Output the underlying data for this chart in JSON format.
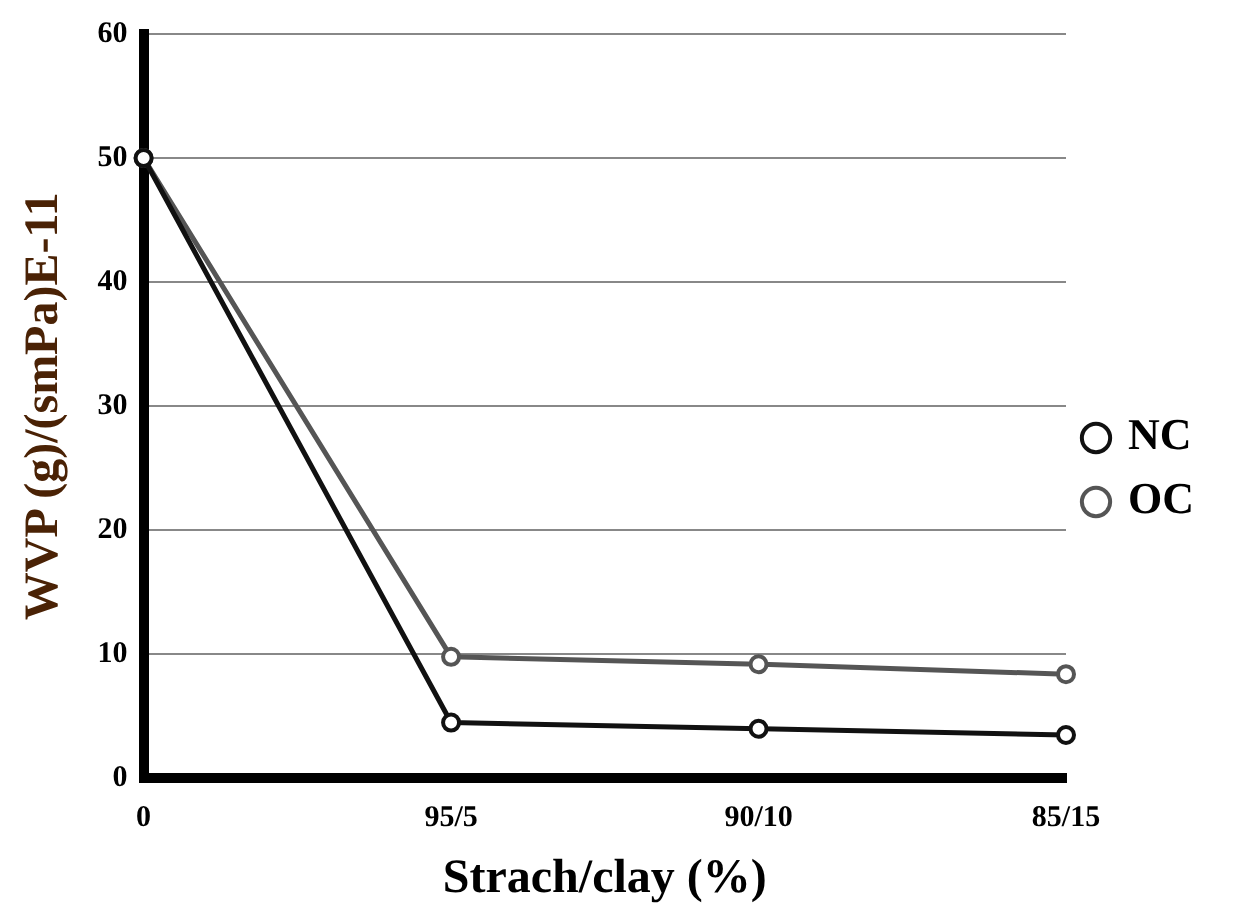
{
  "chart_data": {
    "type": "line",
    "xlabel": "Strach/clay (%)",
    "ylabel": "WVP (g)/(smPa)E-11",
    "categories": [
      "0",
      "95/5",
      "90/10",
      "85/15"
    ],
    "series": [
      {
        "name": "NC",
        "color": "#111111",
        "values": [
          50,
          4.5,
          4.0,
          3.5
        ]
      },
      {
        "name": "OC",
        "color": "#555555",
        "values": [
          50,
          9.8,
          9.2,
          8.4
        ]
      }
    ],
    "ylim": [
      0,
      60
    ],
    "yticks": [
      0,
      10,
      20,
      30,
      40,
      50,
      60
    ],
    "grid": "y",
    "legend": "right",
    "marker": "circle",
    "line_style": "solid"
  }
}
